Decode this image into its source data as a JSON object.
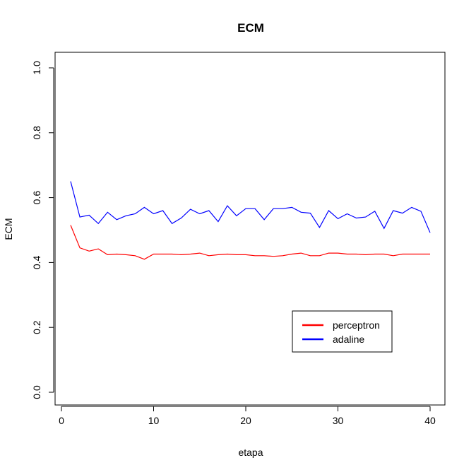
{
  "chart_data": {
    "type": "line",
    "title": "ECM",
    "xlabel": "etapa",
    "ylabel": "ECM",
    "xlim": [
      1,
      40
    ],
    "ylim": [
      0,
      1
    ],
    "xticks": [
      0,
      10,
      20,
      30,
      40
    ],
    "xtick_labels": [
      "0",
      "10",
      "20",
      "30",
      "40"
    ],
    "yticks": [
      0.0,
      0.2,
      0.4,
      0.6,
      0.8,
      1.0
    ],
    "ytick_labels": [
      "0.0",
      "0.2",
      "0.4",
      "0.6",
      "0.8",
      "1.0"
    ],
    "grid": false,
    "legend_position": "bottom-right",
    "x": [
      1,
      2,
      3,
      4,
      5,
      6,
      7,
      8,
      9,
      10,
      11,
      12,
      13,
      14,
      15,
      16,
      17,
      18,
      19,
      20,
      21,
      22,
      23,
      24,
      25,
      26,
      27,
      28,
      29,
      30,
      31,
      32,
      33,
      34,
      35,
      36,
      37,
      38,
      39,
      40
    ],
    "series": [
      {
        "name": "perceptron",
        "color": "#ff0000",
        "values": [
          0.515,
          0.445,
          0.435,
          0.442,
          0.424,
          0.426,
          0.424,
          0.421,
          0.41,
          0.426,
          0.426,
          0.426,
          0.424,
          0.426,
          0.429,
          0.421,
          0.424,
          0.426,
          0.424,
          0.424,
          0.421,
          0.421,
          0.419,
          0.421,
          0.426,
          0.429,
          0.421,
          0.421,
          0.429,
          0.429,
          0.426,
          0.426,
          0.424,
          0.426,
          0.426,
          0.421,
          0.426,
          0.426,
          0.426,
          0.426
        ]
      },
      {
        "name": "adaline",
        "color": "#0000ff",
        "values": [
          0.65,
          0.54,
          0.546,
          0.52,
          0.555,
          0.532,
          0.544,
          0.55,
          0.57,
          0.55,
          0.56,
          0.52,
          0.537,
          0.564,
          0.55,
          0.56,
          0.526,
          0.575,
          0.544,
          0.566,
          0.566,
          0.532,
          0.566,
          0.566,
          0.57,
          0.555,
          0.552,
          0.508,
          0.56,
          0.535,
          0.55,
          0.537,
          0.54,
          0.558,
          0.505,
          0.56,
          0.552,
          0.57,
          0.558,
          0.492
        ]
      }
    ]
  }
}
